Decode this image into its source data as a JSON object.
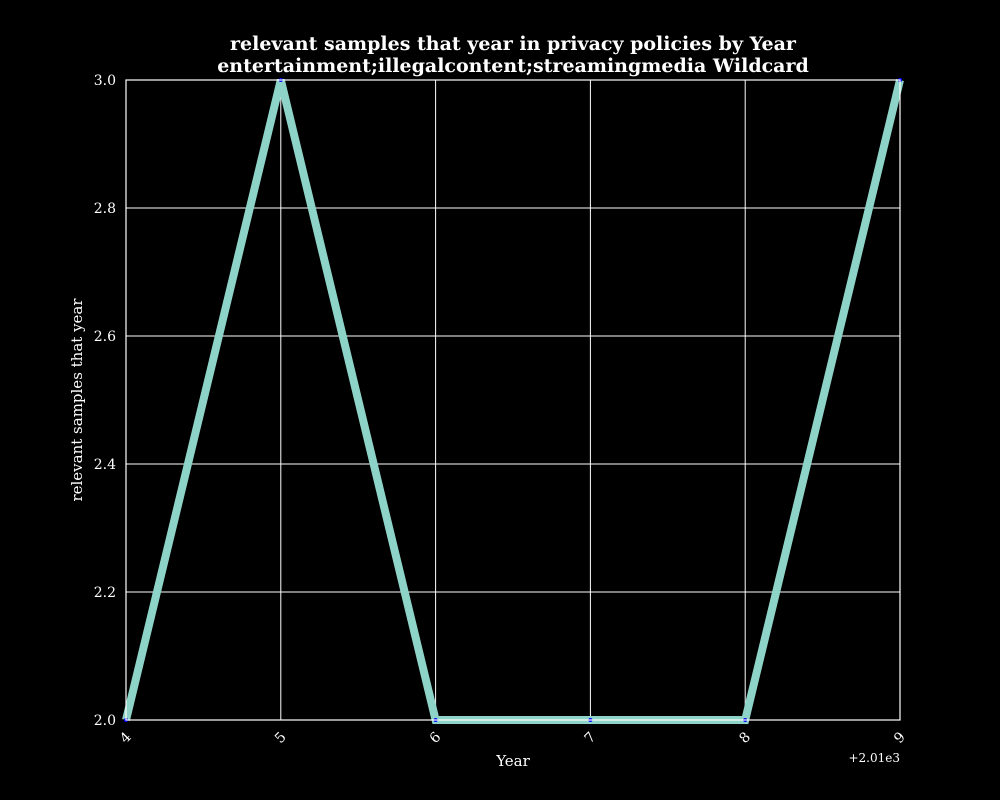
{
  "chart_data": {
    "type": "line",
    "title_lines": [
      "relevant samples that year in privacy policies by Year",
      "entertainment;illegalcontent;streamingmedia Wildcard"
    ],
    "xlabel": "Year",
    "ylabel": "relevant samples that year",
    "x_offset_label": "+2.01e3",
    "x": [
      2014,
      2015,
      2016,
      2017,
      2018,
      2019
    ],
    "x_tick_values": [
      2014,
      2015,
      2016,
      2017,
      2018,
      2019
    ],
    "x_tick_labels": [
      "4",
      "5",
      "6",
      "7",
      "8",
      "9"
    ],
    "xlim": [
      2014,
      2019
    ],
    "y_tick_values": [
      2.0,
      2.2,
      2.4,
      2.6,
      2.8,
      3.0
    ],
    "y_tick_labels": [
      "2.0",
      "2.2",
      "2.4",
      "2.6",
      "2.8",
      "3.0"
    ],
    "ylim": [
      2.0,
      3.0
    ],
    "grid": true,
    "background_color": "#000000",
    "grid_color": "#ffffff",
    "series": [
      {
        "values": [
          2,
          3,
          2,
          2,
          2,
          3
        ],
        "color": "#8dd3c7",
        "marker_color": "#0000ff"
      }
    ]
  }
}
